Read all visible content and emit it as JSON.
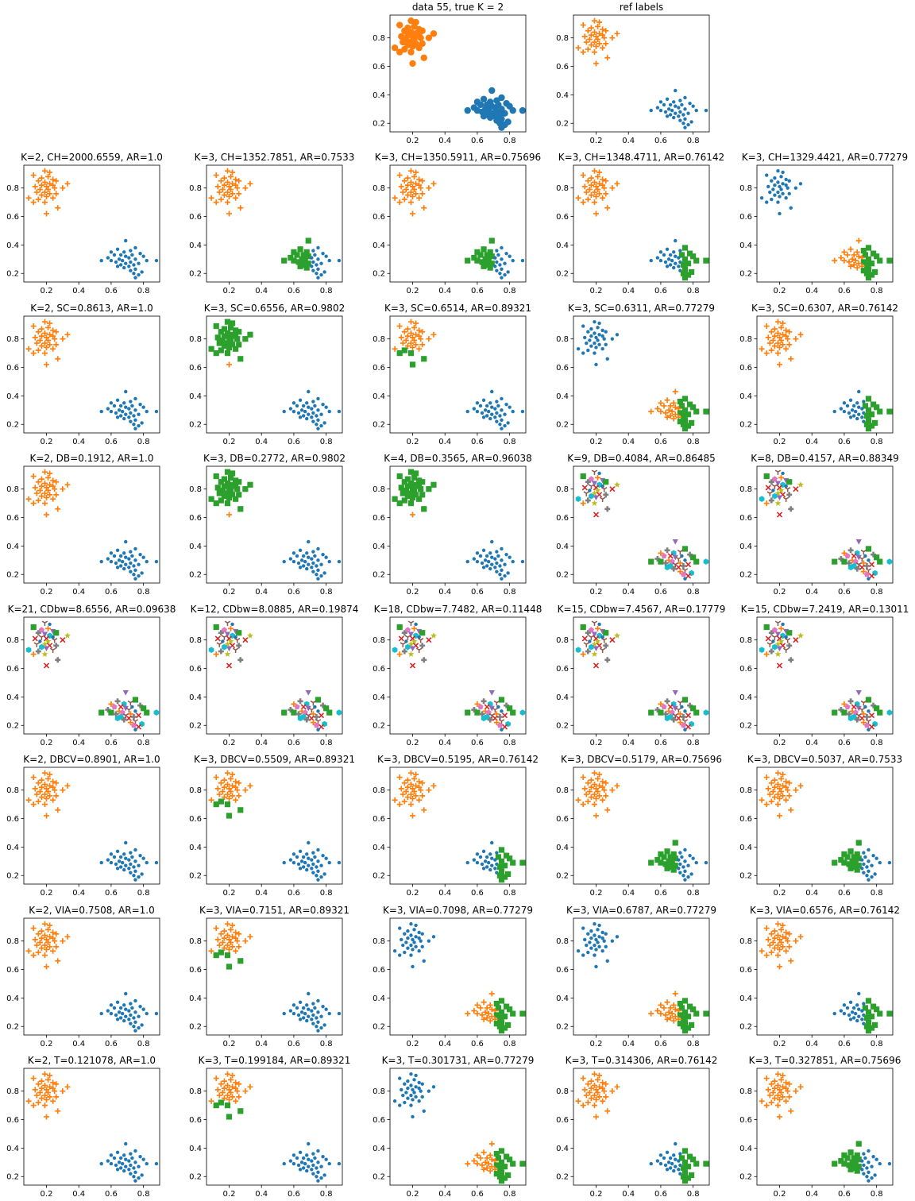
{
  "figure": {
    "colors": [
      "#1f77b4",
      "#ff7f0e",
      "#2ca02c",
      "#d62728",
      "#9467bd",
      "#8c564b",
      "#e377c2",
      "#7f7f7f",
      "#bcbd22",
      "#17becf"
    ],
    "markers": [
      "dot",
      "plus",
      "square",
      "x",
      "triangle-down",
      "tri-down",
      "pentagon",
      "plus-filled",
      "star",
      "hexagon"
    ]
  },
  "chart_data": [
    {
      "type": "scatter",
      "row": 0,
      "col": 2,
      "title": "data 55, true K = 2",
      "labeling": "ref-bigdots"
    },
    {
      "type": "scatter",
      "row": 0,
      "col": 3,
      "title": "ref labels",
      "labeling": "ref"
    },
    {
      "type": "scatter",
      "row": 1,
      "col": 0,
      "title": "K=2, CH=2000.6559, AR=1.0",
      "labeling": "k2"
    },
    {
      "type": "scatter",
      "row": 1,
      "col": 1,
      "title": "K=3, CH=1352.7851, AR=0.7533",
      "labeling": "split-bottom-left"
    },
    {
      "type": "scatter",
      "row": 1,
      "col": 2,
      "title": "K=3, CH=1350.5911, AR=0.75696",
      "labeling": "split-bottom-left"
    },
    {
      "type": "scatter",
      "row": 1,
      "col": 3,
      "title": "K=3, CH=1348.4711, AR=0.76142",
      "labeling": "split-bottom-right"
    },
    {
      "type": "scatter",
      "row": 1,
      "col": 4,
      "title": "K=3, CH=1329.4421, AR=0.77279",
      "labeling": "top-blue-split-bottom"
    },
    {
      "type": "scatter",
      "row": 2,
      "col": 0,
      "title": "K=2, SC=0.8613, AR=1.0",
      "labeling": "k2"
    },
    {
      "type": "scatter",
      "row": 2,
      "col": 1,
      "title": "K=3, SC=0.6556, AR=0.9802",
      "labeling": "top-mostly-green"
    },
    {
      "type": "scatter",
      "row": 2,
      "col": 2,
      "title": "K=3, SC=0.6514, AR=0.89321",
      "labeling": "top-split-green"
    },
    {
      "type": "scatter",
      "row": 2,
      "col": 3,
      "title": "K=3, SC=0.6311, AR=0.77279",
      "labeling": "top-blue-split-bottom"
    },
    {
      "type": "scatter",
      "row": 2,
      "col": 4,
      "title": "K=3, SC=0.6307, AR=0.76142",
      "labeling": "split-bottom-right"
    },
    {
      "type": "scatter",
      "row": 3,
      "col": 0,
      "title": "K=2, DB=0.1912, AR=1.0",
      "labeling": "k2"
    },
    {
      "type": "scatter",
      "row": 3,
      "col": 1,
      "title": "K=3, DB=0.2772, AR=0.9802",
      "labeling": "top-mostly-green"
    },
    {
      "type": "scatter",
      "row": 3,
      "col": 2,
      "title": "K=4, DB=0.3565, AR=0.96038",
      "labeling": "top-mostly-green"
    },
    {
      "type": "scatter",
      "row": 3,
      "col": 3,
      "title": "K=9, DB=0.4084, AR=0.86485",
      "labeling": "many"
    },
    {
      "type": "scatter",
      "row": 3,
      "col": 4,
      "title": "K=8, DB=0.4157, AR=0.88349",
      "labeling": "many"
    },
    {
      "type": "scatter",
      "row": 4,
      "col": 0,
      "title": "K=21, CDbw=8.6556, AR=0.09638",
      "labeling": "many"
    },
    {
      "type": "scatter",
      "row": 4,
      "col": 1,
      "title": "K=12, CDbw=8.0885, AR=0.19874",
      "labeling": "many"
    },
    {
      "type": "scatter",
      "row": 4,
      "col": 2,
      "title": "K=18, CDbw=7.7482, AR=0.11448",
      "labeling": "many"
    },
    {
      "type": "scatter",
      "row": 4,
      "col": 3,
      "title": "K=15, CDbw=7.4567, AR=0.17779",
      "labeling": "many"
    },
    {
      "type": "scatter",
      "row": 4,
      "col": 4,
      "title": "K=15, CDbw=7.2419, AR=0.13011",
      "labeling": "many"
    },
    {
      "type": "scatter",
      "row": 5,
      "col": 0,
      "title": "K=2, DBCV=0.8901, AR=1.0",
      "labeling": "k2"
    },
    {
      "type": "scatter",
      "row": 5,
      "col": 1,
      "title": "K=3, DBCV=0.5509, AR=0.89321",
      "labeling": "top-split-green"
    },
    {
      "type": "scatter",
      "row": 5,
      "col": 2,
      "title": "K=3, DBCV=0.5195, AR=0.76142",
      "labeling": "split-bottom-right"
    },
    {
      "type": "scatter",
      "row": 5,
      "col": 3,
      "title": "K=3, DBCV=0.5179, AR=0.75696",
      "labeling": "split-bottom-left"
    },
    {
      "type": "scatter",
      "row": 5,
      "col": 4,
      "title": "K=3, DBCV=0.5037, AR=0.7533",
      "labeling": "split-bottom-left"
    },
    {
      "type": "scatter",
      "row": 6,
      "col": 0,
      "title": "K=2, VIA=0.7508, AR=1.0",
      "labeling": "k2"
    },
    {
      "type": "scatter",
      "row": 6,
      "col": 1,
      "title": "K=3, VIA=0.7151, AR=0.89321",
      "labeling": "top-split-green"
    },
    {
      "type": "scatter",
      "row": 6,
      "col": 2,
      "title": "K=3, VIA=0.7098, AR=0.77279",
      "labeling": "top-blue-split-bottom"
    },
    {
      "type": "scatter",
      "row": 6,
      "col": 3,
      "title": "K=3, VIA=0.6787, AR=0.77279",
      "labeling": "top-blue-split-bottom"
    },
    {
      "type": "scatter",
      "row": 6,
      "col": 4,
      "title": "K=3, VIA=0.6576, AR=0.76142",
      "labeling": "split-bottom-right"
    },
    {
      "type": "scatter",
      "row": 7,
      "col": 0,
      "title": "K=2, T=0.121078, AR=1.0",
      "labeling": "k2"
    },
    {
      "type": "scatter",
      "row": 7,
      "col": 1,
      "title": "K=3, T=0.199184, AR=0.89321",
      "labeling": "top-split-green"
    },
    {
      "type": "scatter",
      "row": 7,
      "col": 2,
      "title": "K=3, T=0.301731, AR=0.77279",
      "labeling": "top-blue-split-bottom"
    },
    {
      "type": "scatter",
      "row": 7,
      "col": 3,
      "title": "K=3, T=0.314306, AR=0.76142",
      "labeling": "split-bottom-right"
    },
    {
      "type": "scatter",
      "row": 7,
      "col": 4,
      "title": "K=3, T=0.327851, AR=0.75696",
      "labeling": "split-bottom-left"
    }
  ],
  "shared_axes": {
    "xlim": [
      0.06,
      0.9
    ],
    "ylim": [
      0.14,
      0.96
    ],
    "xticks": [
      0.2,
      0.4,
      0.6,
      0.8
    ],
    "xtick_labels": [
      "0.2",
      "0.4",
      "0.6",
      "0.8"
    ],
    "yticks": [
      0.2,
      0.4,
      0.6,
      0.8
    ],
    "ytick_labels": [
      "0.2",
      "0.4",
      "0.6",
      "0.8"
    ]
  },
  "points": {
    "top": [
      [
        0.19,
        0.92
      ],
      [
        0.12,
        0.89
      ],
      [
        0.22,
        0.91
      ],
      [
        0.17,
        0.87
      ],
      [
        0.24,
        0.86
      ],
      [
        0.21,
        0.88
      ],
      [
        0.15,
        0.85
      ],
      [
        0.19,
        0.84
      ],
      [
        0.26,
        0.85
      ],
      [
        0.22,
        0.83
      ],
      [
        0.17,
        0.82
      ],
      [
        0.2,
        0.81
      ],
      [
        0.24,
        0.82
      ],
      [
        0.33,
        0.83
      ],
      [
        0.13,
        0.81
      ],
      [
        0.16,
        0.79
      ],
      [
        0.21,
        0.79
      ],
      [
        0.25,
        0.8
      ],
      [
        0.3,
        0.8
      ],
      [
        0.19,
        0.77
      ],
      [
        0.14,
        0.77
      ],
      [
        0.22,
        0.76
      ],
      [
        0.17,
        0.75
      ],
      [
        0.26,
        0.76
      ],
      [
        0.2,
        0.74
      ],
      [
        0.09,
        0.73
      ],
      [
        0.15,
        0.72
      ],
      [
        0.24,
        0.73
      ],
      [
        0.12,
        0.7
      ],
      [
        0.19,
        0.7
      ],
      [
        0.27,
        0.66
      ],
      [
        0.2,
        0.62
      ]
    ],
    "bottom": [
      [
        0.69,
        0.43
      ],
      [
        0.75,
        0.38
      ],
      [
        0.64,
        0.37
      ],
      [
        0.72,
        0.36
      ],
      [
        0.6,
        0.35
      ],
      [
        0.68,
        0.35
      ],
      [
        0.78,
        0.34
      ],
      [
        0.66,
        0.33
      ],
      [
        0.73,
        0.33
      ],
      [
        0.62,
        0.33
      ],
      [
        0.69,
        0.32
      ],
      [
        0.8,
        0.32
      ],
      [
        0.58,
        0.31
      ],
      [
        0.71,
        0.31
      ],
      [
        0.65,
        0.3
      ],
      [
        0.75,
        0.3
      ],
      [
        0.67,
        0.29
      ],
      [
        0.6,
        0.29
      ],
      [
        0.82,
        0.29
      ],
      [
        0.88,
        0.29
      ],
      [
        0.54,
        0.29
      ],
      [
        0.72,
        0.28
      ],
      [
        0.63,
        0.28
      ],
      [
        0.69,
        0.27
      ],
      [
        0.77,
        0.27
      ],
      [
        0.66,
        0.26
      ],
      [
        0.74,
        0.26
      ],
      [
        0.71,
        0.25
      ],
      [
        0.64,
        0.25
      ],
      [
        0.68,
        0.24
      ],
      [
        0.75,
        0.23
      ],
      [
        0.72,
        0.22
      ],
      [
        0.79,
        0.21
      ],
      [
        0.74,
        0.2
      ],
      [
        0.77,
        0.19
      ],
      [
        0.75,
        0.17
      ]
    ]
  }
}
